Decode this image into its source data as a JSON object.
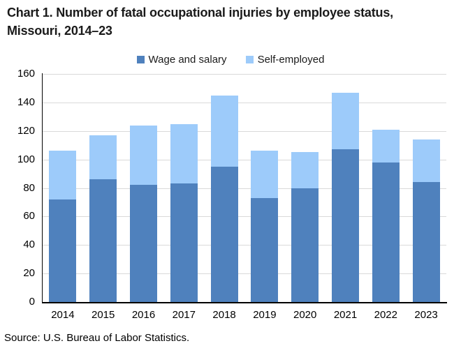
{
  "source_note": "Source: U.S. Bureau of Labor Statistics.",
  "chart_data": {
    "type": "bar",
    "stacked": true,
    "title": "Chart 1. Number of fatal occupational injuries by employee status, Missouri, 2014–23",
    "categories": [
      "2014",
      "2015",
      "2016",
      "2017",
      "2018",
      "2019",
      "2020",
      "2021",
      "2022",
      "2023"
    ],
    "series": [
      {
        "name": "Wage and salary",
        "color": "#4F81BD",
        "values": [
          72,
          86,
          82,
          83,
          95,
          73,
          80,
          107,
          98,
          84
        ]
      },
      {
        "name": "Self-employed",
        "color": "#9DCBFA",
        "values": [
          34,
          31,
          42,
          42,
          50,
          33,
          25,
          40,
          23,
          30
        ]
      }
    ],
    "totals": [
      106,
      117,
      124,
      125,
      145,
      106,
      105,
      147,
      121,
      114
    ],
    "xlabel": "",
    "ylabel": "",
    "ylim": [
      0,
      160
    ],
    "ytick_step": 20,
    "grid": true,
    "legend_position": "top-center",
    "gridline_color": "#D9D9D9",
    "axis_color": "#000000",
    "background_color": "#FFFFFF"
  }
}
